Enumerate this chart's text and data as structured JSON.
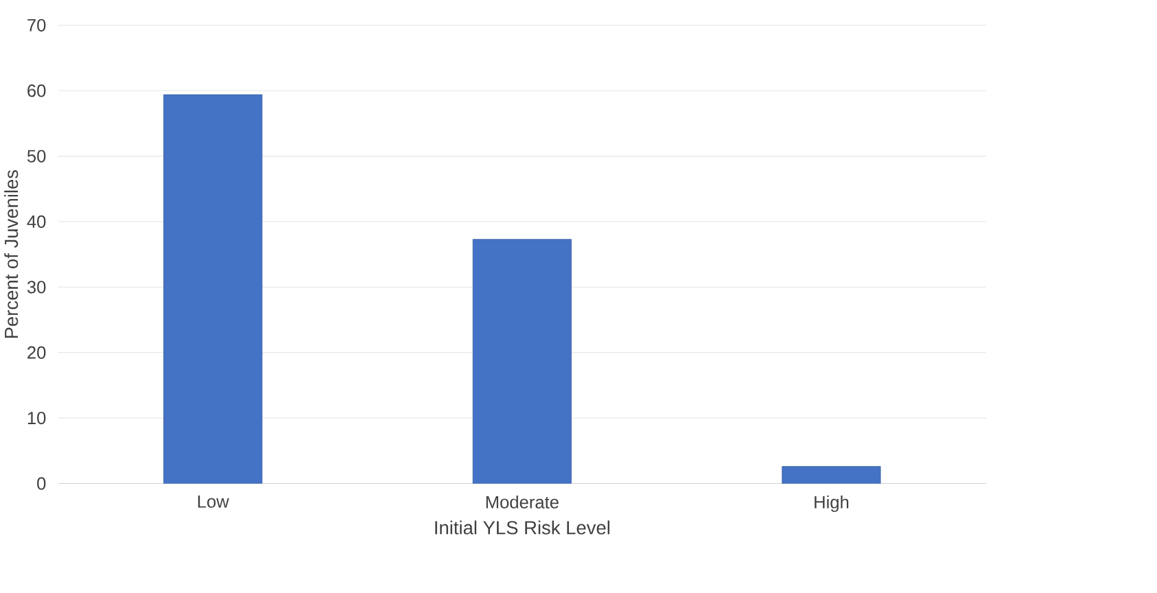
{
  "chart_data": {
    "type": "bar",
    "xlabel": "Initial YLS Risk Level",
    "ylabel": "Percent of Juveniles",
    "categories": [
      "Low",
      "Moderate",
      "High"
    ],
    "values": [
      59.4,
      37.3,
      2.6
    ],
    "color": "#4472c4",
    "ylim": [
      0,
      70
    ],
    "yticks": [
      0,
      10,
      20,
      30,
      40,
      50,
      60,
      70
    ],
    "grid": "y"
  }
}
